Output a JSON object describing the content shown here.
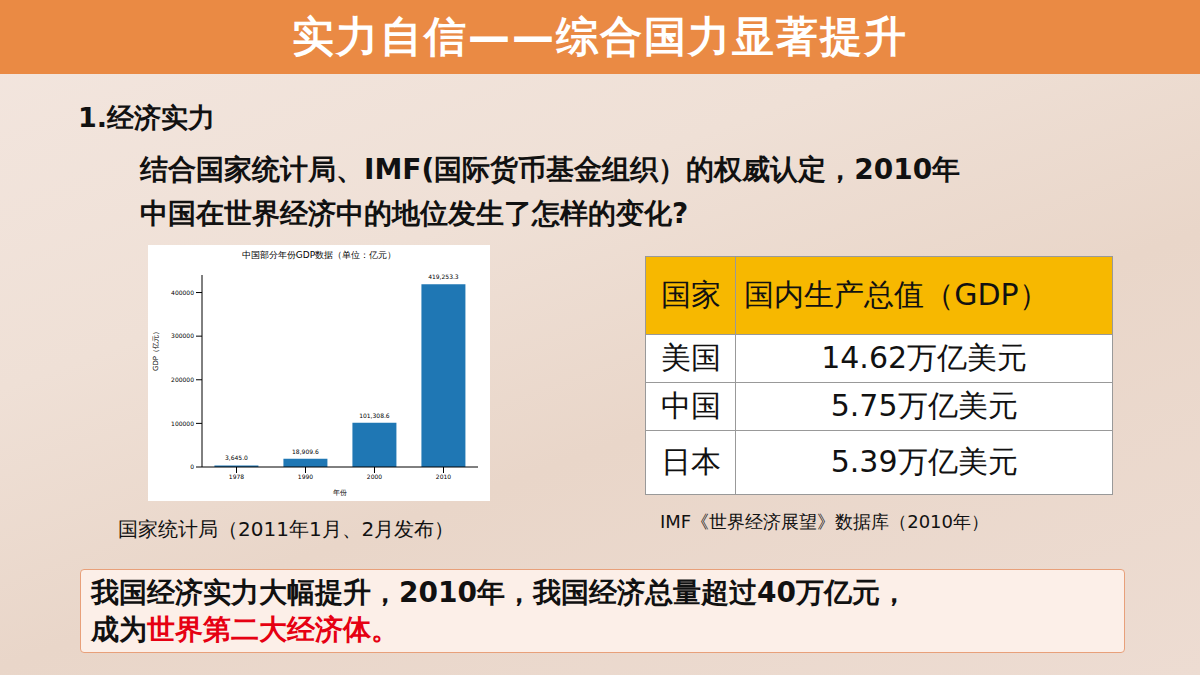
{
  "title": "实力自信——综合国力显著提升",
  "heading": "1.经济实力",
  "question": [
    "结合国家统计局、IMF(国际货币基金组织）的权威认定，2010年",
    "中国在世界经济中的地位发生了怎样的变化?"
  ],
  "chart_data": {
    "type": "bar",
    "title": "中国部分年份GDP数据（单位：亿元）",
    "x_label": "年份",
    "y_label": "GDP（亿元）",
    "categories": [
      "1978",
      "1990",
      "2000",
      "2010"
    ],
    "values": [
      3645.0,
      18909.6,
      101308.6,
      419253.3
    ],
    "value_labels": [
      "3,645.0",
      "18,909.6",
      "101,308.6",
      "419,253.3"
    ],
    "data_labels": true,
    "color": "#1f77b4",
    "ylim": [
      0,
      440216
    ],
    "yticks": [
      0,
      100000,
      200000,
      300000,
      400000
    ],
    "grid": false
  },
  "chart_source": "国家统计局（2011年1月、2月发布）",
  "table": {
    "header": [
      "国家",
      "国内生产总值（GDP）"
    ],
    "rows": [
      [
        "美国",
        "14.62万亿美元"
      ],
      [
        "中国",
        "5.75万亿美元"
      ],
      [
        "日本",
        "5.39万亿美元"
      ]
    ]
  },
  "table_source": "IMF《世界经济展望》数据库（2010年）",
  "conclusion": {
    "lines": [
      "我国经济实力大幅提升，2010年，我国经济总量超过40万亿元，",
      "成为"
    ],
    "highlight": "世界第二大经济体。"
  }
}
